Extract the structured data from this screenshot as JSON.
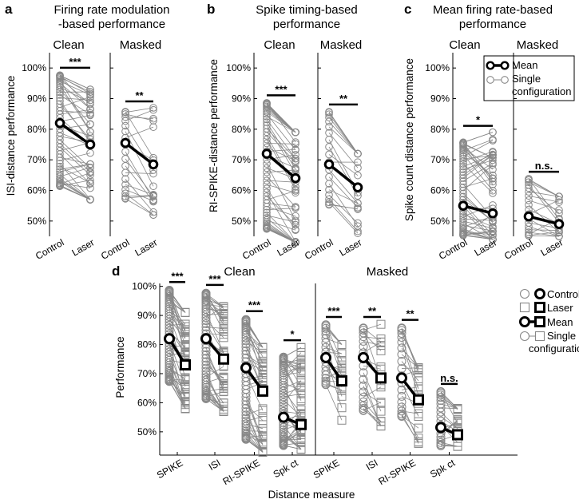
{
  "panels": {
    "a": {
      "letter": "a",
      "title1": "Firing rate modulation",
      "title2": "-based performance",
      "ylabel": "ISI-distance performance"
    },
    "b": {
      "letter": "b",
      "title1": "Spike timing-based",
      "title2": "performance",
      "ylabel": "RI-SPIKE-distance performance"
    },
    "c": {
      "letter": "c",
      "title1": "Mean firing rate-based",
      "title2": "performance",
      "ylabel": "Spike count distance performance"
    },
    "d": {
      "letter": "d",
      "ylabel": "Performance",
      "xlabel": "Distance measure"
    }
  },
  "labels": {
    "clean": "Clean",
    "masked": "Masked",
    "control": "Control",
    "laser": "Laser"
  },
  "legend_top": {
    "mean": "Mean",
    "single1": "Single",
    "single2": "configuration"
  },
  "legend_d": {
    "control": "Control",
    "laser": "Laser",
    "mean": "Mean",
    "single1": "Single",
    "single2": "configuration"
  },
  "colors": {
    "single": "#888888",
    "mean": "#000000"
  },
  "chart_data": [
    {
      "panel": "a",
      "type": "scatter",
      "ylim": [
        45,
        105
      ],
      "yticks": [
        "50%",
        "60%",
        "70%",
        "80%",
        "90%",
        "100%"
      ],
      "groups": [
        {
          "condition": "Clean",
          "n": 48,
          "control_range": [
            61,
            98
          ],
          "laser_range": [
            57,
            93
          ],
          "mean": [
            82,
            75
          ],
          "sig": "***"
        },
        {
          "condition": "Masked",
          "n": 20,
          "control_range": [
            57,
            86
          ],
          "laser_range": [
            52,
            87
          ],
          "mean": [
            75.5,
            68.5
          ],
          "sig": "**"
        }
      ]
    },
    {
      "panel": "b",
      "type": "scatter",
      "ylim": [
        45,
        105
      ],
      "yticks": [
        "50%",
        "60%",
        "70%",
        "80%",
        "90%",
        "100%"
      ],
      "groups": [
        {
          "condition": "Clean",
          "n": 48,
          "control_range": [
            47,
            89
          ],
          "laser_range": [
            43,
            79
          ],
          "mean": [
            72,
            64
          ],
          "sig": "***"
        },
        {
          "condition": "Masked",
          "n": 20,
          "control_range": [
            55,
            86
          ],
          "laser_range": [
            46,
            72
          ],
          "mean": [
            68.5,
            61
          ],
          "sig": "**"
        }
      ]
    },
    {
      "panel": "c",
      "type": "scatter",
      "ylim": [
        45,
        105
      ],
      "yticks": [
        "50%",
        "60%",
        "70%",
        "80%",
        "90%",
        "100%"
      ],
      "groups": [
        {
          "condition": "Clean",
          "n": 48,
          "control_range": [
            45,
            76
          ],
          "laser_range": [
            44,
            79
          ],
          "mean": [
            55,
            52.5
          ],
          "sig": "*"
        },
        {
          "condition": "Masked",
          "n": 20,
          "control_range": [
            45,
            64
          ],
          "laser_range": [
            45,
            58
          ],
          "mean": [
            51.5,
            49
          ],
          "sig": "n.s."
        }
      ]
    },
    {
      "panel": "d",
      "type": "scatter",
      "ylim": [
        42,
        101
      ],
      "yticks": [
        "50%",
        "60%",
        "70%",
        "80%",
        "90%",
        "100%"
      ],
      "categories": [
        "SPIKE",
        "ISI",
        "RI-SPIKE",
        "Spk ct"
      ],
      "groups": [
        {
          "condition": "Clean",
          "measure": "SPIKE",
          "n": 48,
          "control_range": [
            67,
            99
          ],
          "laser_range": [
            58,
            91
          ],
          "mean": [
            82,
            73
          ],
          "sig": "***"
        },
        {
          "condition": "Clean",
          "measure": "ISI",
          "n": 48,
          "control_range": [
            61,
            98
          ],
          "laser_range": [
            57,
            93
          ],
          "mean": [
            82,
            75
          ],
          "sig": "***"
        },
        {
          "condition": "Clean",
          "measure": "RI-SPIKE",
          "n": 48,
          "control_range": [
            47,
            89
          ],
          "laser_range": [
            43,
            79
          ],
          "mean": [
            72,
            64
          ],
          "sig": "***"
        },
        {
          "condition": "Clean",
          "measure": "Spk ct",
          "n": 48,
          "control_range": [
            45,
            76
          ],
          "laser_range": [
            44,
            79
          ],
          "mean": [
            55,
            52.5
          ],
          "sig": "*"
        },
        {
          "condition": "Masked",
          "measure": "SPIKE",
          "n": 20,
          "control_range": [
            66,
            87
          ],
          "laser_range": [
            54,
            80
          ],
          "mean": [
            75.5,
            67.5
          ],
          "sig": "***"
        },
        {
          "condition": "Masked",
          "measure": "ISI",
          "n": 20,
          "control_range": [
            57,
            86
          ],
          "laser_range": [
            52,
            87
          ],
          "mean": [
            75.5,
            68.5
          ],
          "sig": "**"
        },
        {
          "condition": "Masked",
          "measure": "RI-SPIKE",
          "n": 20,
          "control_range": [
            55,
            86
          ],
          "laser_range": [
            46,
            72
          ],
          "mean": [
            68.5,
            61
          ],
          "sig": "**"
        },
        {
          "condition": "Masked",
          "measure": "Spk ct",
          "n": 20,
          "control_range": [
            45,
            64
          ],
          "laser_range": [
            45,
            58
          ],
          "mean": [
            51.5,
            49
          ],
          "sig": "n.s."
        }
      ]
    }
  ]
}
